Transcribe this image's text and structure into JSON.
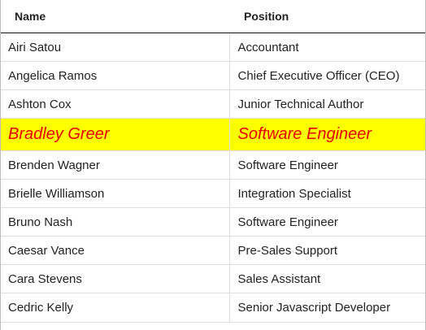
{
  "table": {
    "columns": [
      "Name",
      "Position"
    ],
    "rows": [
      {
        "name": "Airi Satou",
        "position": "Accountant",
        "selected": false
      },
      {
        "name": "Angelica Ramos",
        "position": "Chief Executive Officer (CEO)",
        "selected": false
      },
      {
        "name": "Ashton Cox",
        "position": "Junior Technical Author",
        "selected": false
      },
      {
        "name": "Bradley Greer",
        "position": "Software Engineer",
        "selected": true
      },
      {
        "name": "Brenden Wagner",
        "position": "Software Engineer",
        "selected": false
      },
      {
        "name": "Brielle Williamson",
        "position": "Integration Specialist",
        "selected": false
      },
      {
        "name": "Bruno Nash",
        "position": "Software Engineer",
        "selected": false
      },
      {
        "name": "Caesar Vance",
        "position": "Pre-Sales Support",
        "selected": false
      },
      {
        "name": "Cara Stevens",
        "position": "Sales Assistant",
        "selected": false
      },
      {
        "name": "Cedric Kelly",
        "position": "Senior Javascript Developer",
        "selected": false
      }
    ]
  },
  "colors": {
    "selected_row_background": "#ffff00",
    "selected_row_text": "#e60000",
    "header_border": "#111111",
    "row_border": "#dddddd"
  }
}
